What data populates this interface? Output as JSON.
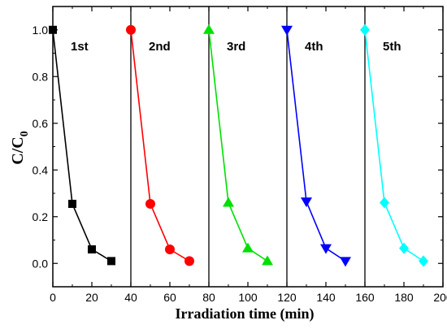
{
  "chart_data": {
    "type": "line",
    "title": "",
    "xlabel": "Irradiation time (min)",
    "ylabel_main": "C/C",
    "ylabel_sub": "0",
    "xlim": [
      0,
      200
    ],
    "ylim": [
      -0.1,
      1.1
    ],
    "x_ticks": [
      0,
      20,
      40,
      60,
      80,
      100,
      120,
      140,
      160,
      180,
      200
    ],
    "y_ticks": [
      0.0,
      0.2,
      0.4,
      0.6,
      0.8,
      1.0
    ],
    "y_tick_labels": [
      "0.0",
      "0.2",
      "0.4",
      "0.6",
      "0.8",
      "1.0"
    ],
    "grid": false,
    "legend": "none",
    "separators": [
      40,
      80,
      120,
      160
    ],
    "series": [
      {
        "label": "1st",
        "color": "#000000",
        "marker": "square",
        "x": [
          0,
          10,
          20,
          30
        ],
        "y": [
          1.0,
          0.255,
          0.06,
          0.01
        ]
      },
      {
        "label": "2nd",
        "color": "#ff0000",
        "marker": "circle",
        "x": [
          40,
          50,
          60,
          70
        ],
        "y": [
          1.0,
          0.255,
          0.06,
          0.01
        ]
      },
      {
        "label": "3rd",
        "color": "#00e000",
        "marker": "triangle-up",
        "x": [
          80,
          90,
          100,
          110
        ],
        "y": [
          1.0,
          0.26,
          0.065,
          0.01
        ]
      },
      {
        "label": "4th",
        "color": "#0000ff",
        "marker": "triangle-down",
        "x": [
          120,
          130,
          140,
          150
        ],
        "y": [
          1.0,
          0.265,
          0.065,
          0.01
        ]
      },
      {
        "label": "5th",
        "color": "#00ffff",
        "marker": "diamond",
        "x": [
          160,
          170,
          180,
          190
        ],
        "y": [
          1.0,
          0.26,
          0.065,
          0.01
        ]
      }
    ]
  }
}
